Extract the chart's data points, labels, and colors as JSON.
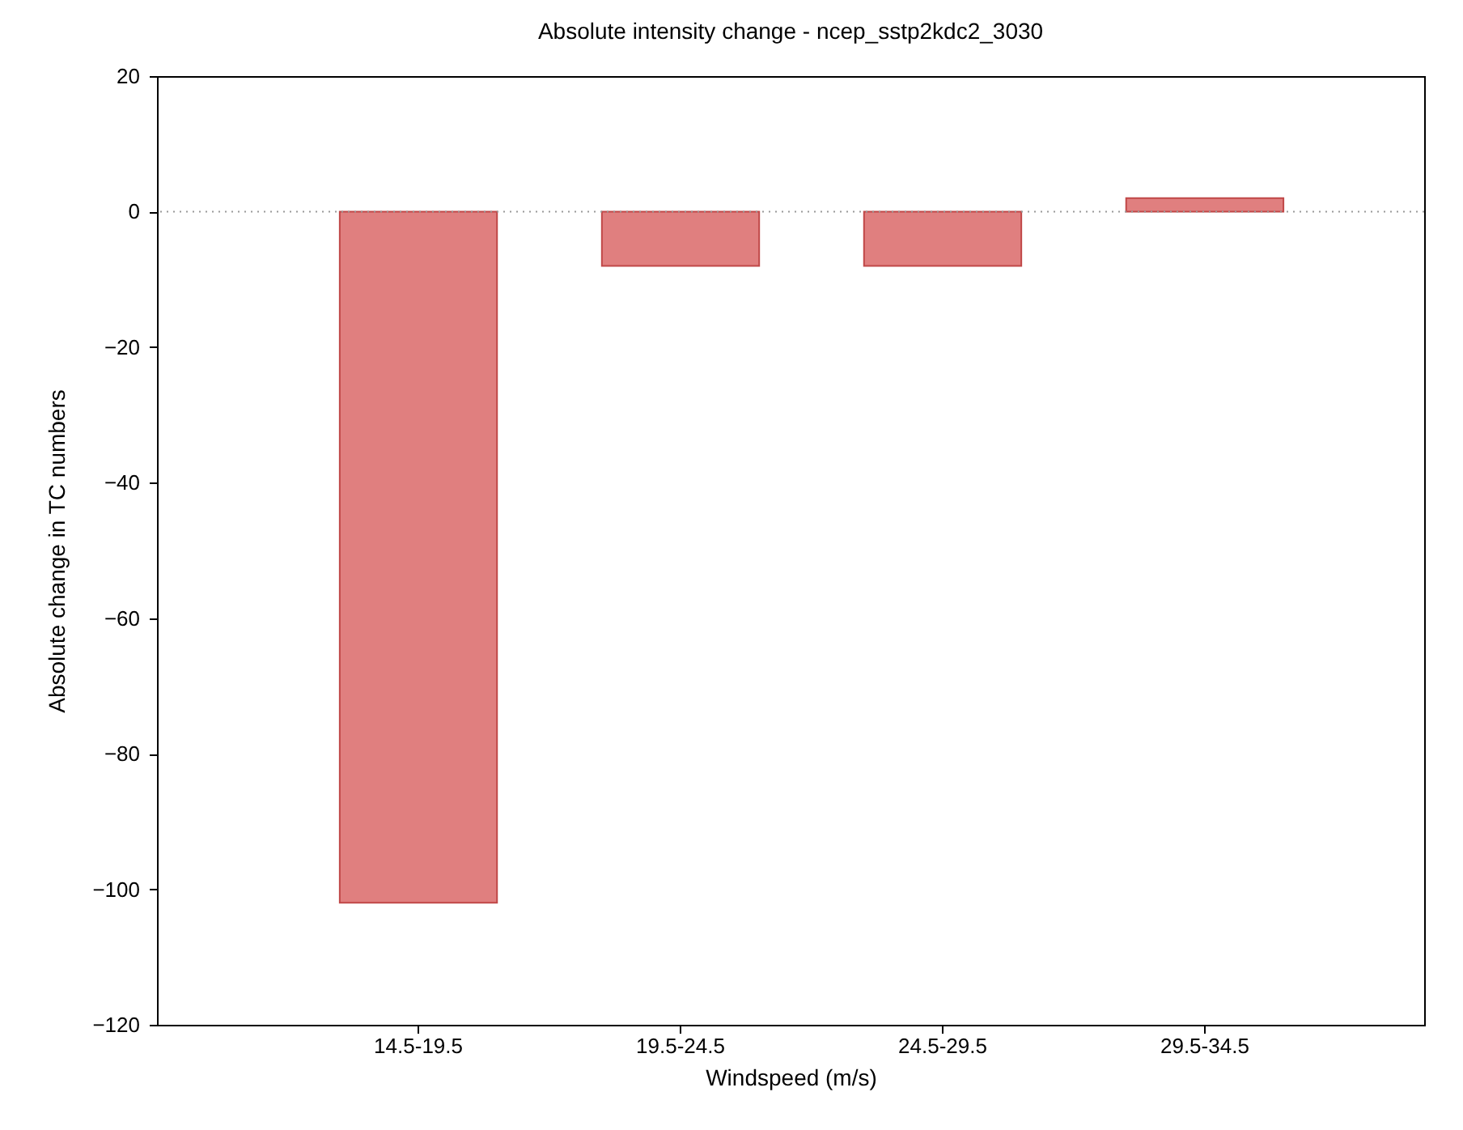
{
  "chart_data": {
    "type": "bar",
    "title": "Absolute intensity change - ncep_sstp2kdc2_3030",
    "xlabel": "Windspeed (m/s)",
    "ylabel": "Absolute change in TC numbers",
    "categories": [
      "14.5-19.5",
      "19.5-24.5",
      "24.5-29.5",
      "29.5-34.5"
    ],
    "values": [
      -102,
      -8,
      -8,
      2
    ],
    "color": "#e07f7f",
    "ylim": [
      -120,
      20
    ],
    "yticks": [
      -120,
      -100,
      -80,
      -60,
      -40,
      -20,
      0,
      20
    ],
    "ref_lines": [
      {
        "axis": "y",
        "value": 0,
        "color": "#999999",
        "line_style": "dotted"
      }
    ]
  }
}
